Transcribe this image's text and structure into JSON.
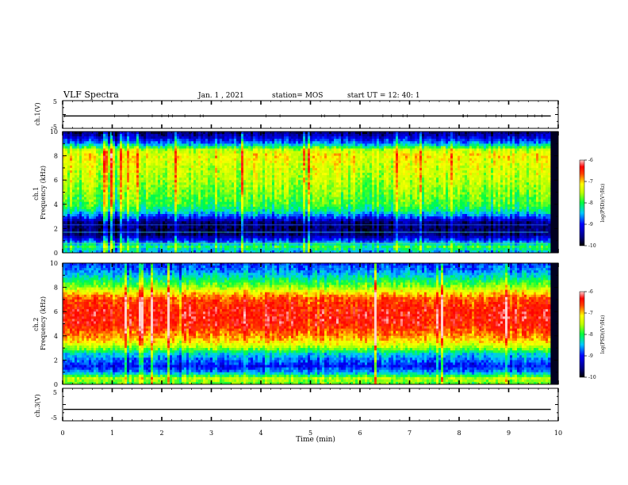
{
  "header": {
    "title": "VLF Spectra",
    "date": "Jan. 1 , 2021",
    "station": "station= MOS",
    "start": "start UT =  12: 40: 1"
  },
  "chart_data": [
    {
      "type": "line",
      "panel": "ch1-waveform",
      "ylabel": "ch.1(V)",
      "ylim": [
        -5,
        5
      ],
      "yticks": [
        "5",
        "-5"
      ],
      "xlim": [
        0,
        10
      ]
    },
    {
      "type": "heatmap",
      "panel": "ch1-spectrogram",
      "ylabel": "ch.1\nFrequency (kHz)",
      "ylabel_lines": [
        "ch.1",
        "Frequency (kHz)"
      ],
      "ylim": [
        0,
        10
      ],
      "yticks": [
        "0",
        "2",
        "4",
        "6",
        "8",
        "10"
      ],
      "xlim": [
        0,
        10
      ],
      "data_end_min": 9.8,
      "intensity_profile": {
        "freq_khz": [
          0,
          0.5,
          1.0,
          1.5,
          2.0,
          2.5,
          3.0,
          3.5,
          4.0,
          5.0,
          6.0,
          7.0,
          8.0,
          8.5,
          9.0,
          9.5,
          10.0
        ],
        "log_psd": [
          -8.6,
          -8.0,
          -8.9,
          -9.6,
          -9.7,
          -9.6,
          -8.8,
          -8.2,
          -7.9,
          -7.7,
          -7.5,
          -7.4,
          -7.2,
          -7.5,
          -8.6,
          -9.2,
          -9.7
        ]
      },
      "colorbar": {
        "label": "log(PSD)(V²/Hz)",
        "label_lines": [
          "log(PSD)",
          "(V²/Hz)"
        ],
        "ticks": [
          "-6",
          "-7",
          "-8",
          "-9",
          "-10"
        ],
        "range": [
          -10,
          -6
        ]
      }
    },
    {
      "type": "heatmap",
      "panel": "ch2-spectrogram",
      "ylabel": "ch.2\nFrequency (kHz)",
      "ylabel_lines": [
        "ch.2",
        "Frequency (kHz)"
      ],
      "ylim": [
        0,
        10
      ],
      "yticks": [
        "0",
        "2",
        "4",
        "6",
        "8",
        "10"
      ],
      "xlim": [
        0,
        10
      ],
      "data_end_min": 9.8,
      "intensity_profile": {
        "freq_khz": [
          0,
          0.5,
          1.0,
          1.5,
          2.0,
          2.5,
          3.0,
          3.5,
          4.0,
          5.0,
          6.0,
          7.0,
          7.5,
          8.0,
          8.5,
          9.0,
          9.5,
          10.0
        ],
        "log_psd": [
          -7.8,
          -7.5,
          -8.6,
          -9.0,
          -8.7,
          -8.4,
          -7.6,
          -7.1,
          -6.8,
          -6.4,
          -6.4,
          -6.6,
          -7.0,
          -7.6,
          -8.0,
          -8.4,
          -8.7,
          -8.9
        ]
      },
      "colorbar": {
        "label": "log(PSD)(V²/Hz)",
        "label_lines": [
          "log(PSD)",
          "(V²/Hz)"
        ],
        "ticks": [
          "-6",
          "-7",
          "-8",
          "-9",
          "-10"
        ],
        "range": [
          -10,
          -6
        ]
      }
    },
    {
      "type": "line",
      "panel": "ch3-waveform",
      "ylabel": "ch.3(V)",
      "ylim": [
        -5,
        5
      ],
      "yticks": [
        "5",
        "-5"
      ],
      "xlim": [
        0,
        10
      ],
      "xlabel": "Time (min)",
      "xticks": [
        "0",
        "1",
        "2",
        "3",
        "4",
        "5",
        "6",
        "7",
        "8",
        "9",
        "10"
      ]
    }
  ]
}
